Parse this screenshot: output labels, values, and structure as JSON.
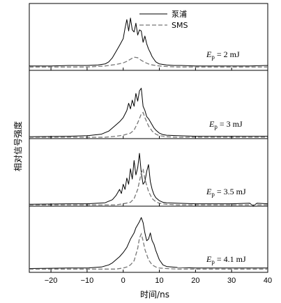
{
  "chart_data": {
    "type": "line",
    "xlabel": "时间/ns",
    "ylabel": "相对信号强度",
    "xlim": [
      -26,
      40
    ],
    "xticks": [
      -20,
      -10,
      0,
      10,
      20,
      30,
      40
    ],
    "legend": {
      "placement": "top-center",
      "entries": [
        {
          "name": "泵浦",
          "style": "solid",
          "color": "#000000"
        },
        {
          "name": "SMS",
          "style": "dashed",
          "color": "#777777"
        }
      ]
    },
    "panels": [
      {
        "label_prefix": "E",
        "label_sub": "p",
        "label_value": " = 2 mJ",
        "series": [
          {
            "name": "泵浦",
            "x": [
              -26,
              -20,
              -15,
              -10,
              -7,
              -5,
              -4,
              -3,
              -2,
              -1,
              0,
              0.5,
              1,
              1.5,
              2,
              2.5,
              3,
              3.5,
              4,
              4.5,
              5,
              5.5,
              6,
              6.5,
              7,
              7.5,
              8,
              8.5,
              9,
              10,
              11,
              12,
              14,
              16,
              20,
              25,
              30,
              35,
              40
            ],
            "y": [
              0.02,
              0.02,
              0.03,
              0.03,
              0.04,
              0.06,
              0.1,
              0.18,
              0.3,
              0.42,
              0.55,
              0.75,
              0.92,
              0.7,
              0.95,
              0.72,
              0.68,
              0.85,
              0.62,
              0.72,
              0.7,
              0.48,
              0.6,
              0.45,
              0.35,
              0.28,
              0.2,
              0.15,
              0.1,
              0.06,
              0.05,
              0.04,
              0.03,
              0.03,
              0.02,
              0.02,
              0.02,
              0.02,
              0.03
            ]
          },
          {
            "name": "SMS",
            "x": [
              -26,
              -10,
              -5,
              -2,
              0,
              1,
              2,
              3,
              4,
              5,
              6,
              7,
              8,
              10,
              12,
              15,
              20,
              30,
              40
            ],
            "y": [
              0.0,
              0.0,
              0.02,
              0.05,
              0.08,
              0.11,
              0.15,
              0.19,
              0.18,
              0.13,
              0.09,
              0.06,
              0.04,
              0.02,
              0.01,
              0.0,
              0.0,
              0.0,
              0.0
            ]
          }
        ]
      },
      {
        "label_prefix": "E",
        "label_sub": "p",
        "label_value": " = 3 mJ",
        "series": [
          {
            "name": "泵浦",
            "x": [
              -26,
              -15,
              -10,
              -6,
              -4,
              -3,
              -2,
              -1,
              0,
              1,
              1.5,
              2,
              2.5,
              3,
              3.5,
              4,
              4.5,
              5,
              5.5,
              6,
              6.5,
              7,
              7.5,
              8,
              8.5,
              9,
              10,
              11,
              12,
              15,
              20,
              30,
              40
            ],
            "y": [
              0.01,
              0.02,
              0.03,
              0.06,
              0.12,
              0.18,
              0.24,
              0.3,
              0.38,
              0.52,
              0.66,
              0.55,
              0.72,
              0.6,
              0.85,
              0.7,
              0.9,
              0.95,
              0.6,
              0.52,
              0.4,
              0.36,
              0.3,
              0.24,
              0.18,
              0.14,
              0.08,
              0.05,
              0.04,
              0.03,
              0.02,
              0.02,
              0.02
            ]
          },
          {
            "name": "SMS",
            "x": [
              -26,
              -5,
              -2,
              0,
              2,
              3,
              4,
              5,
              5.5,
              6,
              7,
              8,
              9,
              10,
              12,
              15,
              20,
              30,
              40
            ],
            "y": [
              0.0,
              0.0,
              0.02,
              0.04,
              0.08,
              0.14,
              0.28,
              0.45,
              0.48,
              0.38,
              0.22,
              0.12,
              0.06,
              0.03,
              0.01,
              0.0,
              0.0,
              0.0,
              0.0
            ]
          }
        ]
      },
      {
        "label_prefix": "E",
        "label_sub": "p",
        "label_value": " = 3.5 mJ",
        "series": [
          {
            "name": "泵浦",
            "x": [
              -26,
              -15,
              -10,
              -5,
              -3,
              -2,
              -1,
              -0.5,
              0,
              0.5,
              1,
              1.5,
              2,
              2.5,
              3,
              3.5,
              4,
              4.5,
              5,
              5.5,
              6,
              6.5,
              7,
              7.5,
              8,
              8.5,
              9,
              10,
              11,
              12,
              15,
              20,
              30,
              35,
              36,
              37,
              40
            ],
            "y": [
              0.01,
              0.02,
              0.02,
              0.04,
              0.1,
              0.18,
              0.3,
              0.22,
              0.4,
              0.3,
              0.52,
              0.4,
              0.7,
              0.5,
              0.86,
              0.58,
              0.72,
              1.0,
              0.62,
              0.4,
              0.45,
              0.65,
              0.78,
              0.45,
              0.3,
              0.2,
              0.14,
              0.08,
              0.05,
              0.04,
              0.03,
              0.02,
              0.02,
              0.03,
              -0.02,
              0.03,
              0.02
            ]
          },
          {
            "name": "SMS",
            "x": [
              -26,
              -2,
              0,
              2,
              3,
              4,
              5,
              5.5,
              6,
              7,
              8,
              9,
              10,
              12,
              15,
              20,
              30,
              40
            ],
            "y": [
              0.0,
              0.0,
              0.02,
              0.05,
              0.12,
              0.3,
              0.62,
              0.7,
              0.5,
              0.26,
              0.12,
              0.06,
              0.03,
              0.01,
              0.0,
              0.0,
              0.0,
              0.0
            ]
          }
        ]
      },
      {
        "label_prefix": "E",
        "label_sub": "p",
        "label_value": " = 4.1 mJ",
        "series": [
          {
            "name": "泵浦",
            "x": [
              -26,
              -15,
              -10,
              -6,
              -4,
              -3,
              -2,
              -1,
              0,
              1,
              1.5,
              2,
              2.5,
              3,
              3.5,
              4,
              4.5,
              5,
              5.5,
              6,
              6.5,
              7,
              7.5,
              8,
              8.5,
              9,
              10,
              11,
              12,
              15,
              20,
              30,
              40
            ],
            "y": [
              0.01,
              0.02,
              0.02,
              0.04,
              0.08,
              0.12,
              0.18,
              0.24,
              0.32,
              0.42,
              0.5,
              0.58,
              0.64,
              0.7,
              0.8,
              0.86,
              0.92,
              1.0,
              0.9,
              0.7,
              0.55,
              0.58,
              0.7,
              0.55,
              0.48,
              0.36,
              0.18,
              0.08,
              0.05,
              0.03,
              0.02,
              0.02,
              0.02
            ]
          },
          {
            "name": "SMS",
            "x": [
              -26,
              -2,
              0,
              1,
              2,
              3,
              4,
              4.5,
              5,
              5.5,
              6,
              7,
              8,
              9,
              10,
              12,
              15,
              20,
              30,
              40
            ],
            "y": [
              0.0,
              0.0,
              0.02,
              0.04,
              0.08,
              0.16,
              0.4,
              0.6,
              0.68,
              0.55,
              0.38,
              0.18,
              0.08,
              0.04,
              0.02,
              0.01,
              0.0,
              0.0,
              0.0,
              0.0
            ]
          }
        ]
      }
    ]
  }
}
